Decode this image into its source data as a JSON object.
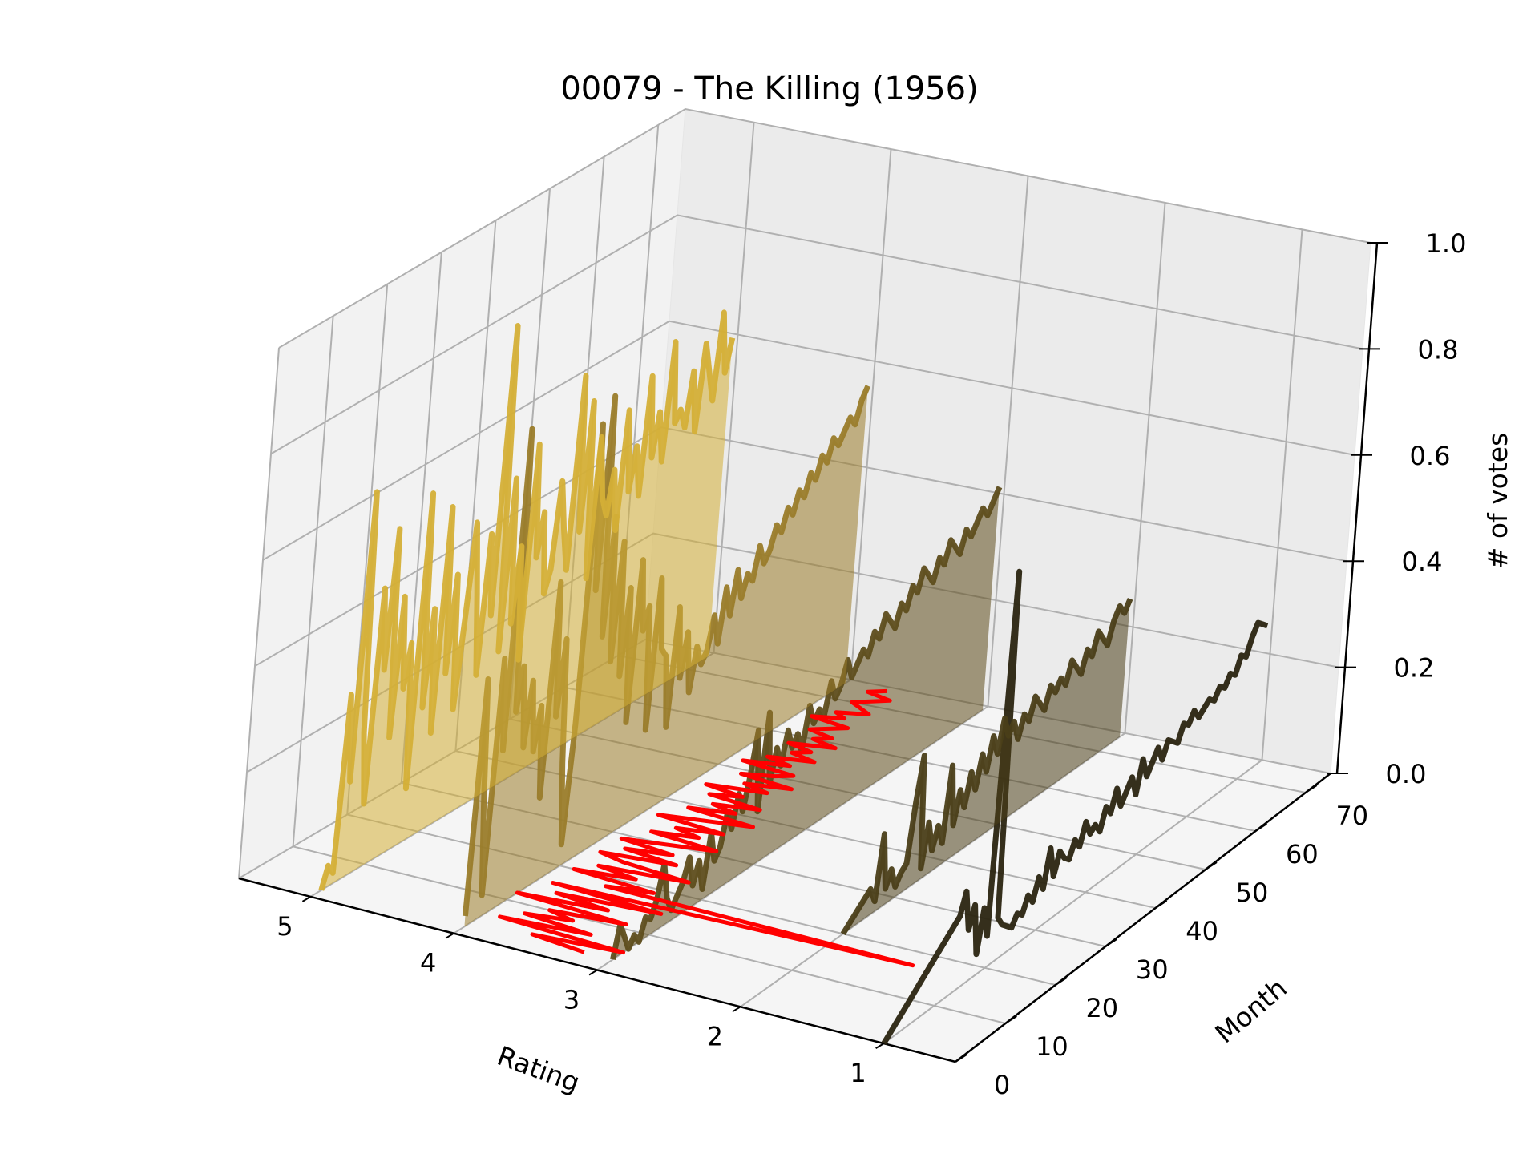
{
  "chart_data": {
    "type": "line",
    "projection": "3d",
    "title": "00079 - The Killing (1956)",
    "xlabel": "Rating",
    "ylabel": "Month",
    "zlabel": "# of votes",
    "xlim": [
      0.5,
      5.5
    ],
    "ylim": [
      0,
      75
    ],
    "zlim": [
      0,
      1
    ],
    "x_ticks": [
      1,
      2,
      3,
      4,
      5
    ],
    "y_ticks": [
      0,
      10,
      20,
      30,
      40,
      50,
      60,
      70
    ],
    "z_ticks": [
      "0.0",
      "0.2",
      "0.4",
      "0.6",
      "0.8",
      "1.0"
    ],
    "grid": true,
    "series": [
      {
        "rating": 5,
        "color": "#d4af37",
        "filled": true,
        "x": [
          2,
          3,
          4,
          5,
          6,
          7,
          8,
          9,
          10,
          11,
          12,
          13,
          14,
          15,
          16,
          17,
          18,
          19,
          20,
          21,
          22,
          23,
          24,
          25,
          26,
          27,
          28,
          29,
          30,
          31,
          32,
          33,
          34,
          35,
          36,
          37,
          38,
          39,
          40,
          41,
          42,
          43,
          44,
          45,
          46,
          47,
          48,
          49,
          50,
          51,
          52,
          53,
          54,
          55,
          56,
          57,
          58,
          59,
          60,
          61,
          62,
          63,
          64,
          65,
          66,
          67,
          68,
          69,
          70,
          71,
          72,
          73,
          74
        ],
        "y": [
          0.0,
          0.04,
          0.02,
          0.35,
          0.18,
          0.72,
          0.26,
          0.12,
          0.52,
          0.36,
          0.62,
          0.22,
          0.48,
          0.3,
          0.38,
          0.1,
          0.65,
          0.24,
          0.42,
          0.18,
          0.6,
          0.28,
          0.46,
          0.2,
          0.36,
          0.54,
          0.4,
          0.24,
          0.5,
          0.34,
          0.88,
          0.26,
          0.58,
          0.3,
          0.44,
          0.22,
          0.62,
          0.4,
          0.48,
          0.32,
          0.36,
          0.52,
          0.42,
          0.34,
          0.7,
          0.4,
          0.64,
          0.3,
          0.56,
          0.44,
          0.4,
          0.48,
          0.36,
          0.58,
          0.42,
          0.5,
          0.4,
          0.62,
          0.46,
          0.54,
          0.44,
          0.66,
          0.5,
          0.52,
          0.48,
          0.58,
          0.46,
          0.62,
          0.56,
          0.5,
          0.66,
          0.54,
          0.6
        ]
      },
      {
        "rating": 4,
        "color": "#9a7c2a",
        "filled": true,
        "x": [
          2,
          3,
          4,
          5,
          6,
          7,
          8,
          9,
          10,
          11,
          12,
          13,
          14,
          15,
          16,
          17,
          18,
          19,
          20,
          21,
          22,
          23,
          24,
          25,
          26,
          27,
          28,
          29,
          30,
          31,
          32,
          33,
          34,
          35,
          36,
          37,
          38,
          39,
          40,
          41,
          42,
          43,
          44,
          45,
          46,
          47,
          48,
          49,
          50,
          51,
          52,
          53,
          54,
          55,
          56,
          57,
          58,
          59,
          60,
          61,
          62,
          63,
          64,
          65,
          66,
          67,
          68,
          69,
          70,
          71,
          72,
          73,
          74
        ],
        "y": [
          0.02,
          0.46,
          0.22,
          0.04,
          0.48,
          0.3,
          0.9,
          0.36,
          0.44,
          0.28,
          0.4,
          0.26,
          0.34,
          0.16,
          0.56,
          0.3,
          0.44,
          0.2,
          0.04,
          0.26,
          0.82,
          0.5,
          0.86,
          0.4,
          0.62,
          0.34,
          0.56,
          0.3,
          0.46,
          0.2,
          0.5,
          0.36,
          0.4,
          0.16,
          0.44,
          0.3,
          0.28,
          0.14,
          0.36,
          0.22,
          0.3,
          0.18,
          0.26,
          0.22,
          0.24,
          0.3,
          0.24,
          0.34,
          0.28,
          0.36,
          0.3,
          0.34,
          0.32,
          0.38,
          0.34,
          0.36,
          0.4,
          0.38,
          0.42,
          0.4,
          0.44,
          0.42,
          0.46,
          0.44,
          0.48,
          0.46,
          0.5,
          0.48,
          0.5,
          0.52,
          0.5,
          0.54,
          0.56
        ]
      },
      {
        "rating": 3,
        "color": "#5e4d1c",
        "filled": true,
        "x": [
          3,
          4,
          5,
          6,
          7,
          8,
          9,
          10,
          11,
          12,
          13,
          14,
          15,
          16,
          17,
          18,
          19,
          20,
          21,
          22,
          23,
          24,
          25,
          26,
          27,
          28,
          29,
          30,
          31,
          32,
          33,
          34,
          35,
          36,
          37,
          38,
          39,
          40,
          41,
          42,
          43,
          44,
          45,
          46,
          47,
          48,
          49,
          50,
          51,
          52,
          53,
          54,
          55,
          56,
          57,
          58,
          59,
          60,
          61,
          62,
          63,
          64,
          65,
          66,
          67,
          68,
          69,
          70,
          71,
          72,
          73,
          74
        ],
        "y": [
          0.0,
          0.06,
          0.03,
          0.0,
          0.02,
          0.0,
          0.04,
          0.03,
          0.06,
          0.12,
          0.05,
          0.02,
          0.04,
          0.06,
          0.1,
          0.04,
          0.08,
          0.02,
          0.12,
          0.06,
          0.08,
          0.14,
          0.1,
          0.16,
          0.12,
          0.18,
          0.26,
          0.1,
          0.28,
          0.14,
          0.2,
          0.16,
          0.22,
          0.18,
          0.2,
          0.16,
          0.24,
          0.2,
          0.22,
          0.2,
          0.26,
          0.22,
          0.24,
          0.28,
          0.24,
          0.26,
          0.28,
          0.26,
          0.3,
          0.28,
          0.32,
          0.3,
          0.28,
          0.32,
          0.3,
          0.34,
          0.32,
          0.36,
          0.34,
          0.32,
          0.36,
          0.34,
          0.38,
          0.36,
          0.34,
          0.38,
          0.36,
          0.38,
          0.4,
          0.38,
          0.4,
          0.42
        ]
      },
      {
        "rating": 2,
        "color": "#4a3e18",
        "filled": true,
        "x": [
          20,
          21,
          22,
          23,
          24,
          25,
          26,
          27,
          28,
          29,
          30,
          31,
          32,
          33,
          34,
          35,
          36,
          37,
          38,
          39,
          40,
          41,
          42,
          43,
          44,
          45,
          46,
          47,
          48,
          49,
          50,
          51,
          52,
          53,
          54,
          55,
          56,
          57,
          58,
          59,
          60,
          61,
          62,
          63,
          64,
          65,
          66,
          67,
          68,
          69,
          70,
          71,
          72,
          73,
          74
        ],
        "y": [
          0.0,
          0.01,
          0.02,
          0.03,
          0.04,
          0.05,
          0.02,
          0.14,
          0.03,
          0.06,
          0.02,
          0.04,
          0.05,
          0.16,
          0.24,
          0.02,
          0.1,
          0.04,
          0.08,
          0.04,
          0.18,
          0.06,
          0.12,
          0.08,
          0.14,
          0.1,
          0.16,
          0.12,
          0.18,
          0.14,
          0.2,
          0.16,
          0.18,
          0.14,
          0.18,
          0.16,
          0.2,
          0.18,
          0.16,
          0.2,
          0.18,
          0.2,
          0.18,
          0.22,
          0.2,
          0.18,
          0.22,
          0.2,
          0.24,
          0.22,
          0.2,
          0.24,
          0.26,
          0.24,
          0.26
        ]
      },
      {
        "rating": 1,
        "color": "#2a2410",
        "filled": false,
        "x": [
          0,
          1,
          2,
          3,
          4,
          5,
          6,
          7,
          8,
          9,
          10,
          11,
          12,
          13,
          14,
          15,
          16,
          17,
          18,
          19,
          20,
          21,
          22,
          23,
          24,
          25,
          26,
          27,
          28,
          29,
          30,
          31,
          32,
          33,
          34,
          35,
          36,
          37,
          38,
          39,
          40,
          41,
          42,
          43,
          44,
          45,
          46,
          47,
          48,
          49,
          50,
          51,
          52,
          53,
          54,
          55,
          56,
          57,
          58,
          59,
          60,
          61,
          62,
          63,
          64,
          65,
          66,
          67,
          68,
          69,
          70,
          71,
          72,
          73,
          74
        ],
        "y": [
          0.0,
          0.01,
          0.02,
          0.03,
          0.04,
          0.05,
          0.06,
          0.07,
          0.08,
          0.09,
          0.1,
          0.11,
          0.12,
          0.13,
          0.14,
          0.18,
          0.1,
          0.14,
          0.04,
          0.12,
          0.06,
          0.74,
          0.08,
          0.06,
          0.05,
          0.04,
          0.06,
          0.05,
          0.08,
          0.06,
          0.1,
          0.07,
          0.14,
          0.08,
          0.12,
          0.1,
          0.09,
          0.12,
          0.1,
          0.14,
          0.11,
          0.12,
          0.1,
          0.14,
          0.12,
          0.16,
          0.12,
          0.14,
          0.16,
          0.12,
          0.18,
          0.14,
          0.16,
          0.18,
          0.15,
          0.18,
          0.17,
          0.16,
          0.19,
          0.18,
          0.2,
          0.18,
          0.19,
          0.2,
          0.19,
          0.21,
          0.2,
          0.22,
          0.21,
          0.24,
          0.23,
          0.26,
          0.28,
          0.27,
          0.26
        ]
      },
      {
        "name": "",
        "kind": "mean-rating",
        "color": "#ff0000",
        "filled": false,
        "x": [
          3,
          4,
          5,
          6,
          7,
          8,
          9,
          10,
          11,
          12,
          13,
          14,
          15,
          16,
          17,
          18,
          19,
          20,
          21,
          22,
          23,
          24,
          25,
          26,
          27,
          28,
          29,
          30,
          31,
          32,
          33,
          34,
          35,
          36,
          37,
          38,
          39,
          40,
          41,
          42,
          43,
          44,
          45,
          46,
          47,
          48,
          49,
          50,
          51,
          52,
          53,
          54,
          55,
          56,
          57,
          58,
          59,
          60,
          61,
          62,
          63,
          64,
          65,
          66,
          67,
          68,
          69,
          70,
          71,
          72,
          73,
          74
        ],
        "rating_value": [
          3.2,
          3.6,
          3.0,
          3.9,
          3.3,
          3.8,
          3.5,
          3.7,
          3.2,
          4.0,
          3.4,
          3.8,
          3.1,
          3.9,
          1.4,
          3.6,
          3.3,
          3.9,
          3.5,
          3.8,
          3.2,
          3.7,
          3.9,
          3.4,
          3.8,
          3.5,
          3.9,
          3.6,
          3.3,
          3.8,
          3.5,
          3.7,
          3.4,
          3.9,
          3.6,
          3.3,
          3.8,
          3.5,
          3.7,
          3.4,
          3.8,
          3.6,
          3.9,
          3.5,
          3.7,
          3.4,
          3.8,
          3.6,
          3.5,
          3.9,
          3.6,
          3.8,
          3.5,
          3.7,
          3.6,
          3.8,
          3.5,
          3.7,
          3.6,
          3.8,
          3.7,
          3.6,
          3.9,
          3.7,
          3.8,
          3.6,
          3.7,
          3.8,
          3.7,
          3.6,
          3.8,
          3.7
        ]
      }
    ]
  }
}
